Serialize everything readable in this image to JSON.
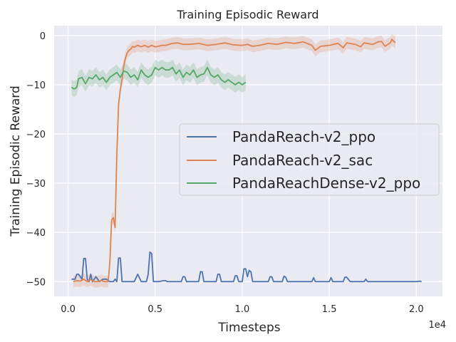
{
  "chart_data": {
    "type": "line",
    "title": "Training Episodic Reward",
    "xlabel": "Timesteps",
    "ylabel": "Training Episodic Reward",
    "x_offset_label": "1e4",
    "xlim": [
      -0.08,
      2.15
    ],
    "ylim": [
      -53,
      2
    ],
    "x_ticks": [
      0.0,
      0.5,
      1.0,
      1.5,
      2.0
    ],
    "x_tick_labels": [
      "0.0",
      "0.5",
      "1.0",
      "1.5",
      "2.0"
    ],
    "y_ticks": [
      0,
      -10,
      -20,
      -30,
      -40,
      -50
    ],
    "y_tick_labels": [
      "0",
      "−10",
      "−20",
      "−30",
      "−40",
      "−50"
    ],
    "grid": true,
    "background": "#eaeaf2",
    "legend_position": "center-right",
    "series": [
      {
        "name": "PandaReach-v2_ppo",
        "color": "#4c72b0",
        "x": [
          0.02,
          0.04,
          0.05,
          0.06,
          0.08,
          0.09,
          0.1,
          0.11,
          0.12,
          0.13,
          0.14,
          0.16,
          0.18,
          0.2,
          0.22,
          0.24,
          0.26,
          0.27,
          0.28,
          0.29,
          0.3,
          0.31,
          0.32,
          0.33,
          0.34,
          0.36,
          0.38,
          0.4,
          0.42,
          0.45,
          0.46,
          0.47,
          0.48,
          0.49,
          0.5,
          0.52,
          0.55,
          0.56,
          0.57,
          0.58,
          0.6,
          0.65,
          0.66,
          0.67,
          0.68,
          0.7,
          0.75,
          0.76,
          0.77,
          0.78,
          0.8,
          0.85,
          0.86,
          0.87,
          0.88,
          0.9,
          0.95,
          0.96,
          0.97,
          0.98,
          1.0,
          1.01,
          1.02,
          1.03,
          1.04,
          1.05,
          1.06,
          1.08,
          1.15,
          1.16,
          1.17,
          1.18,
          1.2,
          1.23,
          1.24,
          1.25,
          1.26,
          1.27,
          1.35,
          1.4,
          1.41,
          1.42,
          1.45,
          1.5,
          1.51,
          1.52,
          1.55,
          1.58,
          1.59,
          1.6,
          1.62,
          1.65,
          1.7,
          1.71,
          1.72,
          1.75,
          1.8,
          1.85,
          1.9,
          1.95,
          2.0,
          2.02,
          2.03
        ],
        "values": [
          -49.5,
          -49.5,
          -48.5,
          -48.5,
          -49.5,
          -45.3,
          -45.3,
          -49.5,
          -50.0,
          -48.5,
          -50.0,
          -49.0,
          -50.0,
          -49.5,
          -49.5,
          -50.0,
          -50.0,
          -49.5,
          -50.0,
          -45.2,
          -45.2,
          -50.0,
          -50.0,
          -50.0,
          -50.0,
          -50.0,
          -50.0,
          -48.5,
          -50.0,
          -50.0,
          -48.5,
          -44.0,
          -44.3,
          -50.0,
          -50.0,
          -50.0,
          -49.8,
          -49.8,
          -50.0,
          -50.0,
          -50.0,
          -50.0,
          -49.0,
          -49.0,
          -50.0,
          -50.0,
          -50.0,
          -48.0,
          -48.0,
          -50.0,
          -50.0,
          -50.0,
          -48.5,
          -48.5,
          -50.0,
          -50.0,
          -50.0,
          -48.8,
          -48.8,
          -50.0,
          -50.0,
          -47.4,
          -47.4,
          -49.0,
          -47.7,
          -48.0,
          -50.0,
          -50.0,
          -50.0,
          -49.0,
          -49.0,
          -50.0,
          -50.0,
          -50.0,
          -48.9,
          -49.1,
          -50.0,
          -50.0,
          -50.0,
          -50.0,
          -49.2,
          -50.0,
          -50.0,
          -50.0,
          -49.2,
          -50.0,
          -50.0,
          -50.0,
          -49.1,
          -49.1,
          -50.0,
          -50.0,
          -50.0,
          -49.5,
          -50.0,
          -50.0,
          -50.0,
          -50.0,
          -50.0,
          -50.0,
          -50.0,
          -49.9,
          -50.0
        ]
      },
      {
        "name": "PandaReach-v2_sac",
        "color": "#dd8452",
        "x": [
          0.03,
          0.05,
          0.07,
          0.09,
          0.11,
          0.13,
          0.15,
          0.17,
          0.19,
          0.21,
          0.23,
          0.24,
          0.25,
          0.26,
          0.27,
          0.28,
          0.29,
          0.3,
          0.31,
          0.32,
          0.33,
          0.34,
          0.35,
          0.36,
          0.37,
          0.38,
          0.4,
          0.42,
          0.44,
          0.46,
          0.48,
          0.5,
          0.52,
          0.54,
          0.56,
          0.58,
          0.6,
          0.63,
          0.66,
          0.7,
          0.75,
          0.8,
          0.85,
          0.9,
          0.95,
          1.0,
          1.03,
          1.06,
          1.1,
          1.15,
          1.2,
          1.25,
          1.3,
          1.35,
          1.4,
          1.42,
          1.45,
          1.5,
          1.55,
          1.58,
          1.6,
          1.65,
          1.68,
          1.7,
          1.75,
          1.78,
          1.8,
          1.82,
          1.85,
          1.86,
          1.87,
          1.88
        ],
        "values": [
          -50.0,
          -49.8,
          -49.9,
          -49.5,
          -50.0,
          -49.6,
          -50.0,
          -50.0,
          -49.8,
          -50.0,
          -50.0,
          -46.0,
          -37.5,
          -37.0,
          -39.0,
          -24.0,
          -14.0,
          -11.0,
          -9.0,
          -6.0,
          -4.5,
          -3.5,
          -3.0,
          -2.8,
          -2.2,
          -2.4,
          -2.0,
          -2.3,
          -2.0,
          -2.4,
          -2.0,
          -2.3,
          -2.2,
          -2.0,
          -2.0,
          -1.8,
          -1.6,
          -1.5,
          -1.8,
          -1.8,
          -1.6,
          -2.0,
          -1.8,
          -1.5,
          -1.9,
          -2.0,
          -1.8,
          -2.2,
          -2.0,
          -1.6,
          -1.8,
          -1.4,
          -1.6,
          -1.3,
          -2.0,
          -3.0,
          -2.2,
          -2.0,
          -1.6,
          -2.5,
          -1.5,
          -1.8,
          -2.3,
          -1.5,
          -1.8,
          -1.3,
          -1.2,
          -2.2,
          -1.5,
          -0.8,
          -1.2,
          -1.4
        ]
      },
      {
        "name": "PandaReachDense-v2_ppo",
        "color": "#55a868",
        "x": [
          0.02,
          0.03,
          0.04,
          0.05,
          0.06,
          0.08,
          0.1,
          0.12,
          0.14,
          0.16,
          0.18,
          0.2,
          0.22,
          0.24,
          0.26,
          0.28,
          0.3,
          0.32,
          0.34,
          0.36,
          0.38,
          0.4,
          0.42,
          0.44,
          0.46,
          0.48,
          0.5,
          0.52,
          0.54,
          0.56,
          0.58,
          0.6,
          0.62,
          0.64,
          0.66,
          0.68,
          0.7,
          0.72,
          0.74,
          0.76,
          0.78,
          0.8,
          0.82,
          0.84,
          0.86,
          0.88,
          0.9,
          0.92,
          0.94,
          0.96,
          0.98,
          1.0,
          1.02
        ],
        "values": [
          -10.5,
          -10.8,
          -10.8,
          -10.5,
          -8.8,
          -8.5,
          -9.8,
          -8.5,
          -8.8,
          -8.0,
          -9.0,
          -8.5,
          -9.5,
          -8.5,
          -8.0,
          -7.5,
          -8.5,
          -7.2,
          -7.5,
          -8.5,
          -8.0,
          -9.0,
          -7.0,
          -8.0,
          -8.5,
          -8.0,
          -6.5,
          -7.0,
          -6.5,
          -7.0,
          -7.0,
          -6.5,
          -7.8,
          -7.0,
          -8.5,
          -7.5,
          -8.0,
          -7.0,
          -8.5,
          -8.0,
          -7.8,
          -6.5,
          -8.0,
          -8.5,
          -8.0,
          -9.0,
          -9.5,
          -9.0,
          -9.5,
          -10.0,
          -9.5,
          -10.0,
          -9.5
        ]
      }
    ]
  }
}
